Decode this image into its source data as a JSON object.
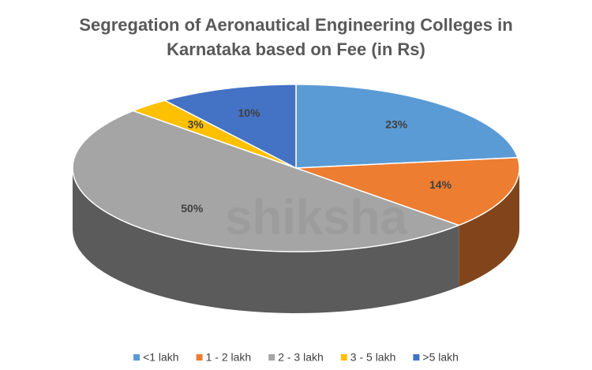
{
  "chart_data": {
    "type": "pie3d",
    "title": [
      "Segregation of Aeronautical Engineering Colleges in",
      "Karnataka based on Fee (in Rs)"
    ],
    "categories": [
      "<1 lakh",
      "1 - 2 lakh",
      "2 - 3 lakh",
      "3 - 5 lakh",
      ">5 lakh"
    ],
    "values": [
      23,
      14,
      50,
      3,
      10
    ],
    "value_labels": [
      "23%",
      "14%",
      "50%",
      "3%",
      "10%"
    ],
    "colors": [
      "#5b9bd5",
      "#ed7d31",
      "#a5a5a5",
      "#ffc000",
      "#4472c4"
    ],
    "legend": "bottom",
    "watermark": "shiksha"
  }
}
